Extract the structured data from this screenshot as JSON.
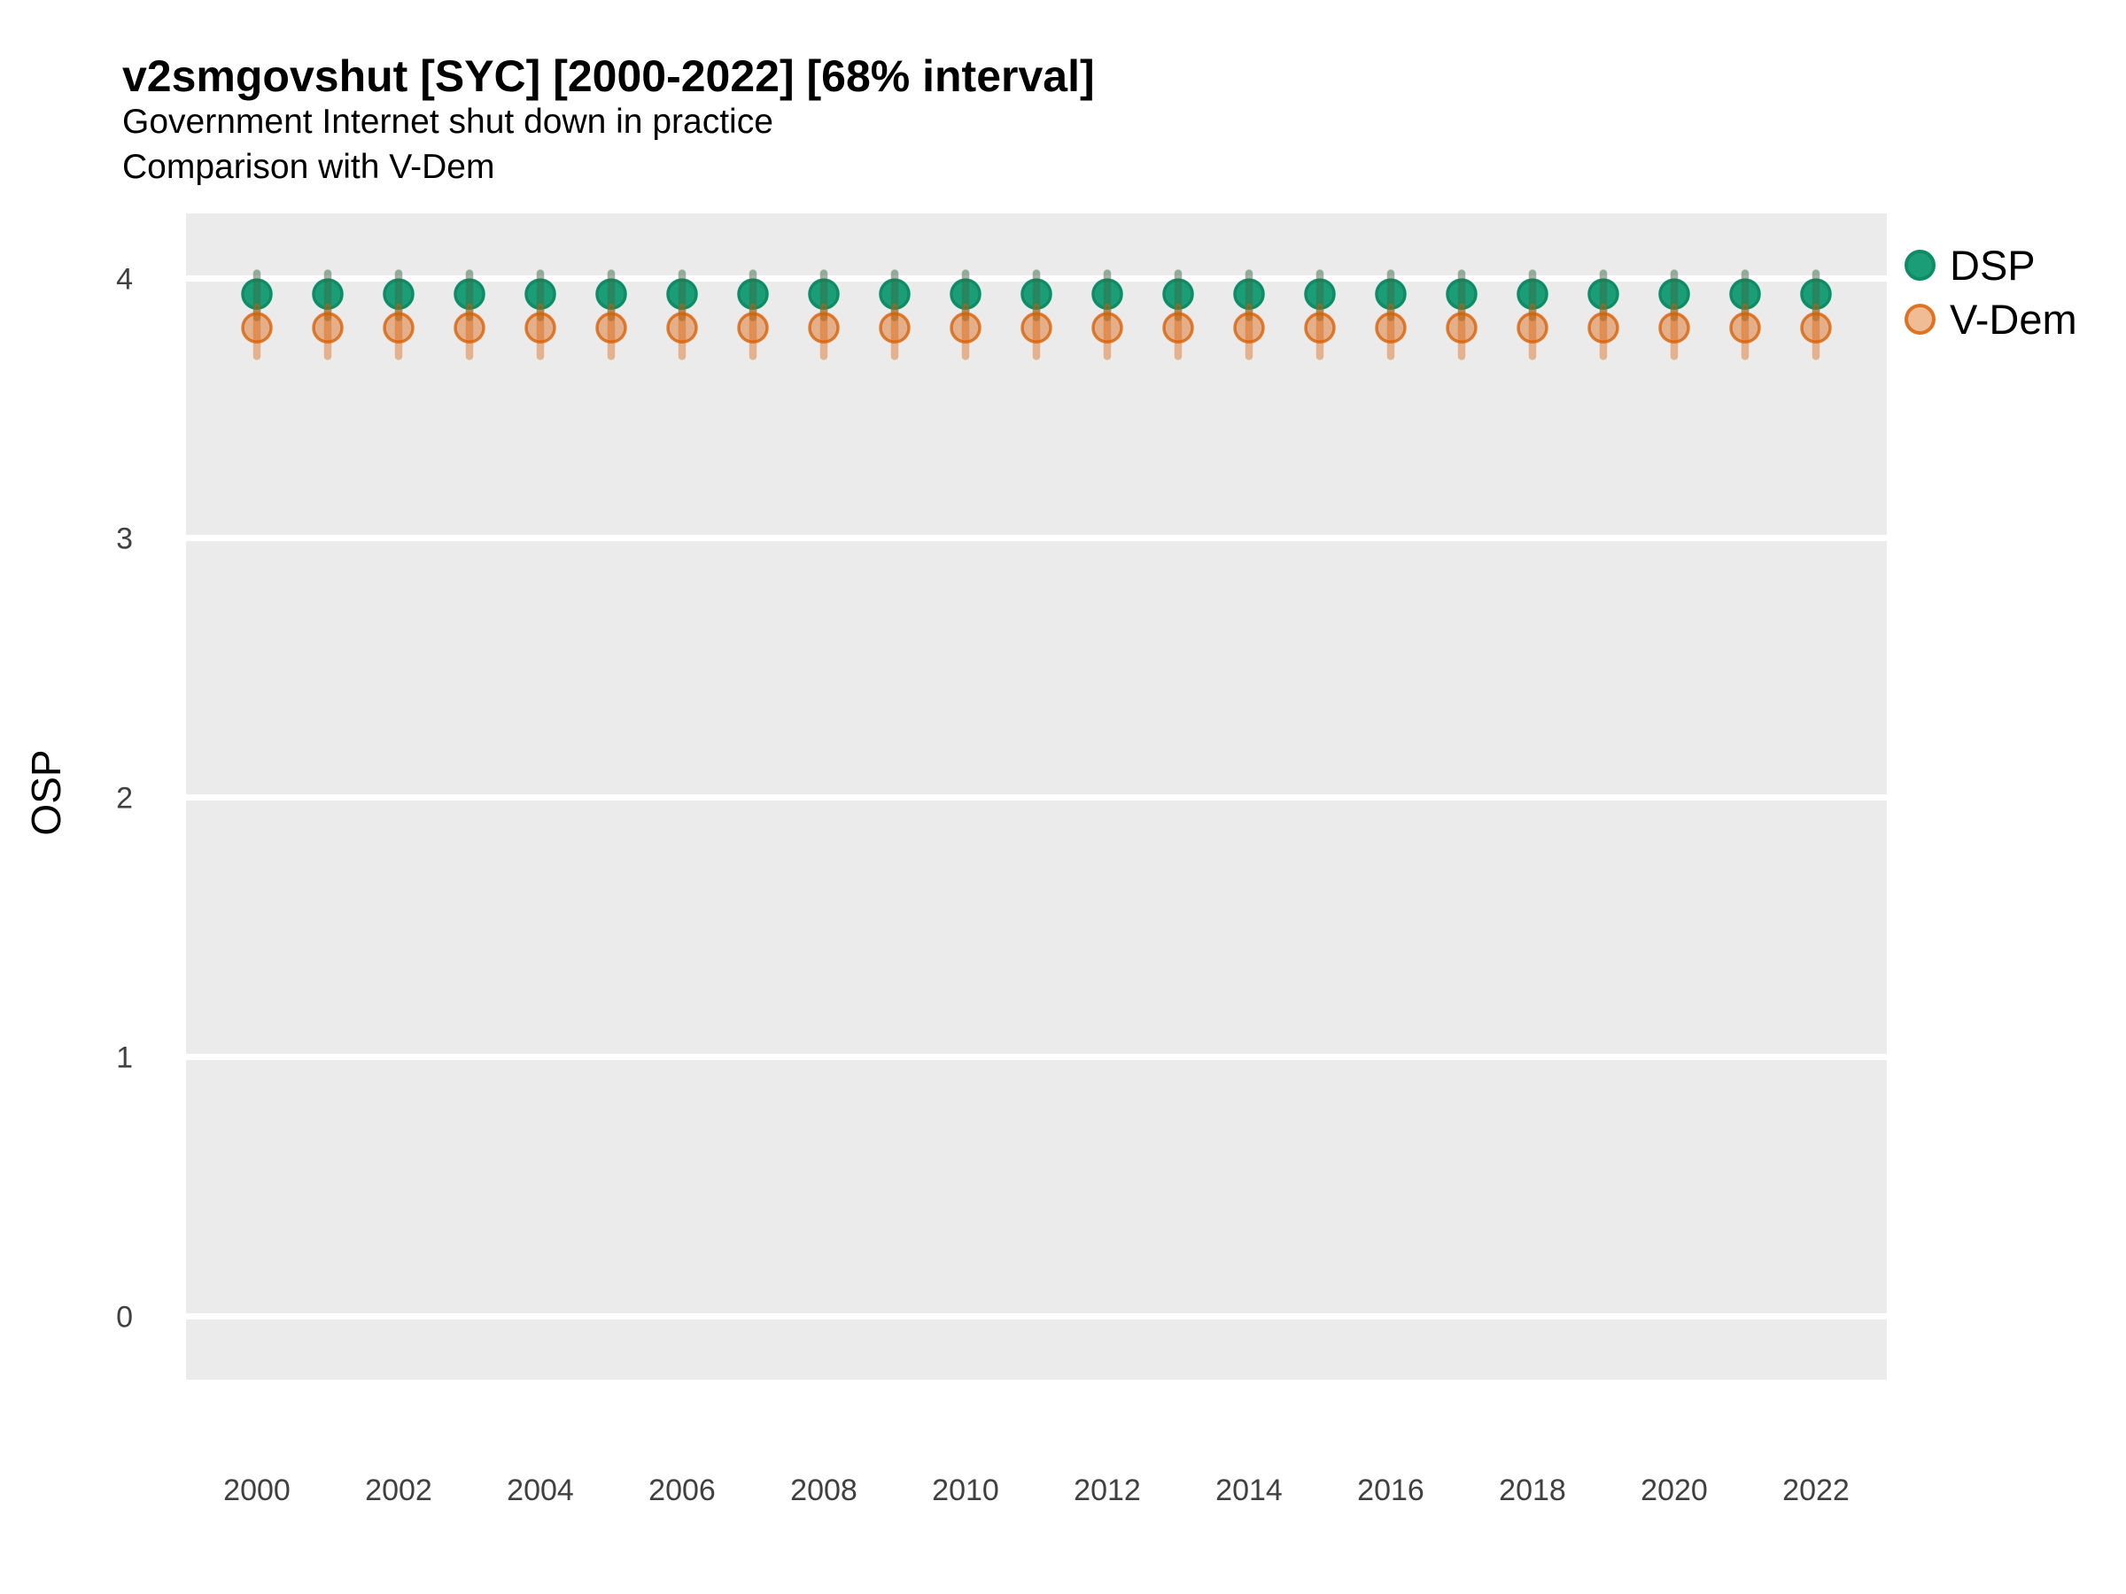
{
  "title": "v2smgovshut [SYC] [2000-2022] [68% interval]",
  "subtitle1": "Government Internet shut down in practice",
  "subtitle2": "Comparison with V-Dem",
  "ylabel": "OSP",
  "legend": {
    "position": "right",
    "items": [
      {
        "label": "DSP",
        "color": "#1b9e77"
      },
      {
        "label": "V-Dem",
        "color": "#d95f02"
      }
    ]
  },
  "chart_data": {
    "type": "scatter",
    "title": "v2smgovshut [SYC] [2000-2022] [68% interval]",
    "subtitle": [
      "Government Internet shut down in practice",
      "Comparison with V-Dem"
    ],
    "xlabel": "",
    "ylabel": "OSP",
    "interval": "68%",
    "grid": "major-white-on-grey",
    "panel_bg": "#ebebeb",
    "gridline_color": "#ffffff",
    "axis_text_color": "#404040",
    "xlim": [
      1999,
      2023
    ],
    "ylim": [
      -0.24,
      4.25
    ],
    "xticks": [
      2000,
      2002,
      2004,
      2006,
      2008,
      2010,
      2012,
      2014,
      2016,
      2018,
      2020,
      2022
    ],
    "yticks": [
      0,
      1,
      2,
      3,
      4
    ],
    "x": [
      2000,
      2001,
      2002,
      2003,
      2004,
      2005,
      2006,
      2007,
      2008,
      2009,
      2010,
      2011,
      2012,
      2013,
      2014,
      2015,
      2016,
      2017,
      2018,
      2019,
      2020,
      2021,
      2022
    ],
    "series": [
      {
        "name": "DSP",
        "color": "#1b9e77",
        "point_fill": "#1b9e77",
        "point_stroke": "#0d8c67",
        "line_color": "rgba(55,108,68,0.5)",
        "est": [
          3.94,
          3.94,
          3.94,
          3.94,
          3.94,
          3.94,
          3.94,
          3.94,
          3.94,
          3.94,
          3.94,
          3.94,
          3.94,
          3.94,
          3.94,
          3.94,
          3.94,
          3.94,
          3.94,
          3.94,
          3.94,
          3.94,
          3.94
        ],
        "lo": [
          3.85,
          3.85,
          3.85,
          3.85,
          3.85,
          3.85,
          3.85,
          3.85,
          3.85,
          3.85,
          3.85,
          3.85,
          3.85,
          3.85,
          3.85,
          3.85,
          3.85,
          3.85,
          3.85,
          3.85,
          3.85,
          3.85,
          3.85
        ],
        "hi": [
          4.02,
          4.02,
          4.02,
          4.02,
          4.02,
          4.02,
          4.02,
          4.02,
          4.02,
          4.02,
          4.02,
          4.02,
          4.02,
          4.02,
          4.02,
          4.02,
          4.02,
          4.02,
          4.02,
          4.02,
          4.02,
          4.02,
          4.02
        ]
      },
      {
        "name": "V-Dem",
        "color": "#d95f02",
        "point_fill": "rgba(217,95,2,0.42)",
        "point_stroke": "rgba(217,95,2,0.78)",
        "line_color": "rgba(217,95,2,0.40)",
        "est": [
          3.81,
          3.81,
          3.81,
          3.81,
          3.81,
          3.81,
          3.81,
          3.81,
          3.81,
          3.81,
          3.81,
          3.81,
          3.81,
          3.81,
          3.81,
          3.81,
          3.81,
          3.81,
          3.81,
          3.81,
          3.81,
          3.81,
          3.81
        ],
        "lo": [
          3.7,
          3.7,
          3.7,
          3.7,
          3.7,
          3.7,
          3.7,
          3.7,
          3.7,
          3.7,
          3.7,
          3.7,
          3.7,
          3.7,
          3.7,
          3.7,
          3.7,
          3.7,
          3.7,
          3.7,
          3.7,
          3.7,
          3.7
        ],
        "hi": [
          3.89,
          3.89,
          3.89,
          3.89,
          3.89,
          3.89,
          3.89,
          3.89,
          3.89,
          3.89,
          3.89,
          3.89,
          3.89,
          3.89,
          3.89,
          3.89,
          3.89,
          3.89,
          3.89,
          3.89,
          3.89,
          3.89,
          3.89
        ]
      }
    ]
  }
}
